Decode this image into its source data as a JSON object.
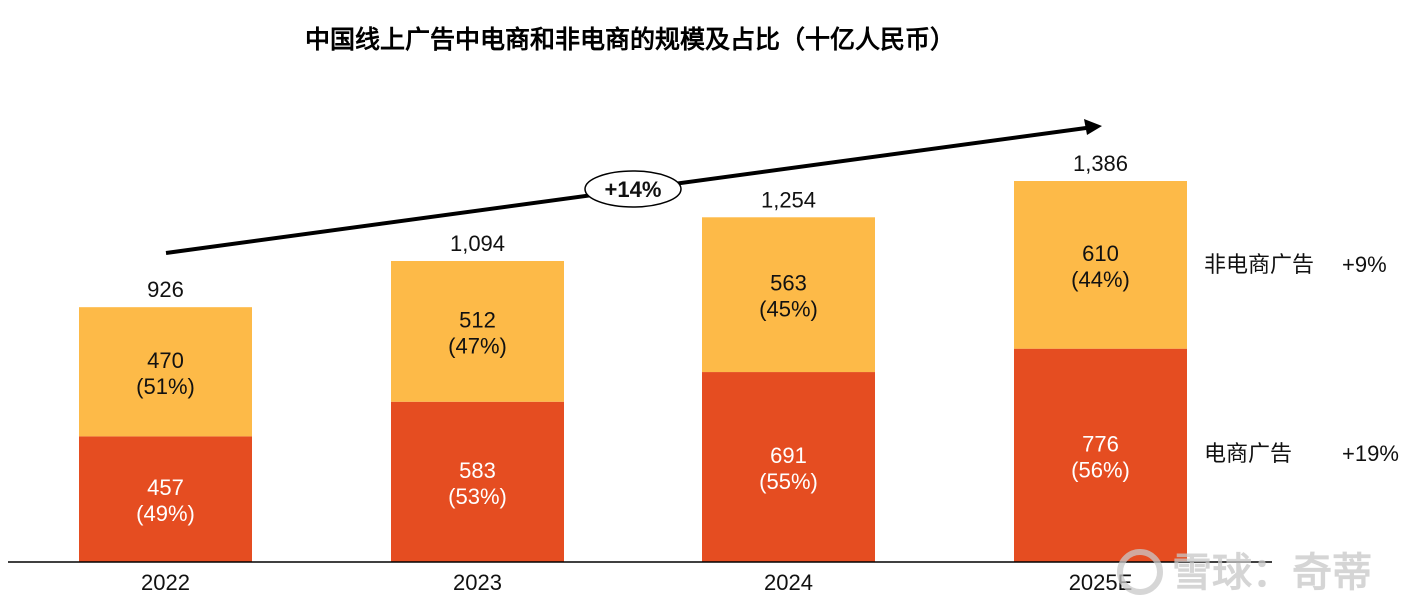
{
  "chart_data": {
    "type": "bar",
    "stacked": true,
    "title": "中国线上广告中电商和非电商的规模及占比（十亿人民币）",
    "xlabel": "",
    "ylabel": "",
    "categories": [
      "2022",
      "2023",
      "2024",
      "2025E"
    ],
    "series": [
      {
        "name": "电商广告",
        "color": "#E54D21",
        "values": [
          457,
          583,
          691,
          776
        ],
        "shares": [
          "(49%)",
          "(53%)",
          "(55%)",
          "(56%)"
        ],
        "growth_label": "+19%"
      },
      {
        "name": "非电商广告",
        "color": "#FDBA48",
        "values": [
          470,
          512,
          563,
          610
        ],
        "shares": [
          "(51%)",
          "(47%)",
          "(45%)",
          "(44%)"
        ],
        "growth_label": "+9%"
      }
    ],
    "totals": [
      "926",
      "1,094",
      "1,254",
      "1,386"
    ],
    "ylim": [
      0,
      1386
    ],
    "grid": false,
    "legend": "right",
    "annotations": {
      "trend_arrow_label": "+14%"
    }
  },
  "watermark": "雪球：奇蒂"
}
